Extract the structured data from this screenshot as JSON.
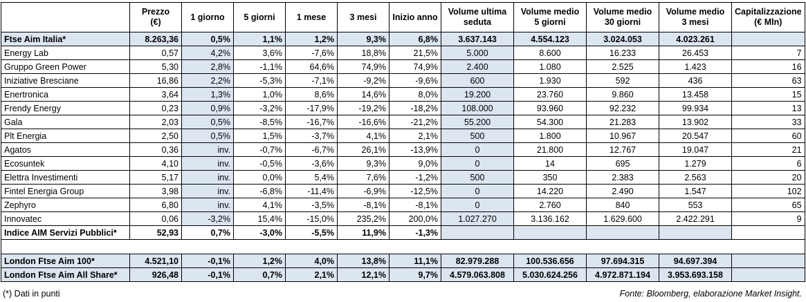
{
  "table": {
    "header": [
      null,
      [
        "Prezzo",
        "(€)"
      ],
      [
        "1 giorno"
      ],
      [
        "5 giorni"
      ],
      [
        "1 mese"
      ],
      [
        "3 mesi"
      ],
      [
        "Inizio anno"
      ],
      [
        "Volume ultima",
        "seduta"
      ],
      [
        "Volume medio",
        "5 giorni"
      ],
      [
        "Volume medio",
        "30 giorni"
      ],
      [
        "Volume medio",
        "3 mesi"
      ],
      [
        "Capitalizzazione",
        "(€ Mln)"
      ]
    ],
    "summary": [
      "Ftse Aim Italia*",
      "8.263,36",
      "0,5%",
      "1,1%",
      "1,2%",
      "9,3%",
      "6,8%",
      "3.637.143",
      "4.554.123",
      "3.024.053",
      "4.023.261",
      null
    ],
    "rows": [
      [
        "Energy Lab",
        "0,57",
        "4,2%",
        "3,6%",
        "-7,6%",
        "18,8%",
        "21,5%",
        "5.000",
        "8.600",
        "16.233",
        "26.453",
        "7"
      ],
      [
        "Gruppo Green Power",
        "5,30",
        "2,8%",
        "-1,1%",
        "64,6%",
        "74,9%",
        "74,9%",
        "2.400",
        "1.080",
        "2.525",
        "1.423",
        "16"
      ],
      [
        "Iniziative Bresciane",
        "16,86",
        "2,2%",
        "-5,3%",
        "-7,1%",
        "-9,2%",
        "-9,6%",
        "600",
        "1.930",
        "592",
        "436",
        "63"
      ],
      [
        "Enertronica",
        "3,64",
        "1,3%",
        "1,0%",
        "8,6%",
        "14,6%",
        "8,0%",
        "19.200",
        "23.760",
        "9.860",
        "13.458",
        "15"
      ],
      [
        "Frendy Energy",
        "0,23",
        "0,9%",
        "-3,2%",
        "-17,9%",
        "-19,2%",
        "-18,2%",
        "108.000",
        "93.960",
        "92.232",
        "99.934",
        "13"
      ],
      [
        "Gala",
        "2,03",
        "0,5%",
        "-8,5%",
        "-16,7%",
        "-16,6%",
        "-21,2%",
        "55.200",
        "54.300",
        "21.283",
        "13.902",
        "33"
      ],
      [
        "Plt Energia",
        "2,50",
        "0,5%",
        "1,5%",
        "-3,7%",
        "4,1%",
        "2,1%",
        "500",
        "1.800",
        "10.967",
        "20.547",
        "60"
      ],
      [
        "Agatos",
        "0,36",
        "inv.",
        "-0,7%",
        "-6,7%",
        "26,1%",
        "-13,9%",
        "0",
        "21.800",
        "12.767",
        "19.047",
        "21"
      ],
      [
        "Ecosuntek",
        "4,10",
        "inv.",
        "-0,5%",
        "-3,6%",
        "9,3%",
        "9,0%",
        "0",
        "14",
        "695",
        "1.279",
        "6"
      ],
      [
        "Elettra Investimenti",
        "5,17",
        "inv.",
        "0,0%",
        "5,4%",
        "7,6%",
        "-1,2%",
        "500",
        "350",
        "2.383",
        "2.563",
        "20"
      ],
      [
        "Fintel Energia Group",
        "3,98",
        "inv.",
        "-6,8%",
        "-11,4%",
        "-6,9%",
        "-12,5%",
        "0",
        "14.220",
        "2.490",
        "1.547",
        "102"
      ],
      [
        "Zephyro",
        "6,80",
        "inv.",
        "4,1%",
        "-3,5%",
        "-8,1%",
        "-8,1%",
        "0",
        "2.760",
        "840",
        "553",
        "65"
      ],
      [
        "Innovatec",
        "0,06",
        "-3,2%",
        "15,4%",
        "-15,0%",
        "235,2%",
        "200,0%",
        "1.027.270",
        "3.136.162",
        "1.629.600",
        "2.422.291",
        "9"
      ]
    ],
    "index_row": [
      "Indice AIM Servizi Pubblici*",
      "52,93",
      "0,7%",
      "-3,0%",
      "-5,5%",
      "11,9%",
      "-1,3%",
      null,
      null,
      null,
      null,
      null
    ],
    "london_rows": [
      [
        "London Ftse Aim 100*",
        "4.521,10",
        "-0,1%",
        "1,2%",
        "4,0%",
        "13,8%",
        "11,1%",
        "82.979.288",
        "100.536.656",
        "97.694.315",
        "94.697.394",
        null
      ],
      [
        "London Ftse Aim All Share*",
        "926,48",
        "-0,1%",
        "0,7%",
        "2,1%",
        "12,1%",
        "9,7%",
        "4.579.063.808",
        "5.030.624.256",
        "4.972.871.194",
        "3.953.693.158",
        null
      ]
    ]
  },
  "footer": {
    "note": "(*) Dati in punti",
    "source": "Fonte: Bloomberg, elaborazione Market Insight."
  }
}
